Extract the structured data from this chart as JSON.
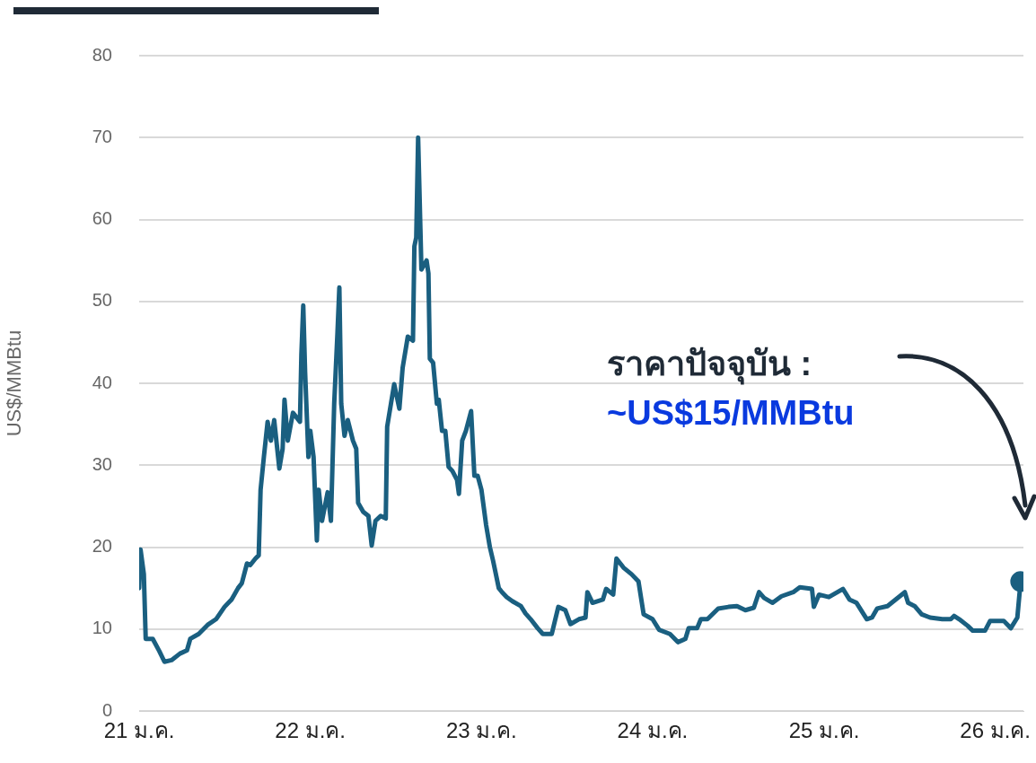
{
  "chart_data": {
    "type": "line",
    "ylabel": "US$/MMBtu",
    "annotations": [
      "ราคาปัจจุบัน :",
      "~US$15/MMBtu"
    ],
    "xlim": [
      "2021-01-01",
      "2026-03-02"
    ],
    "ylim": [
      0,
      80
    ],
    "yticks": [
      0,
      10,
      20,
      30,
      40,
      50,
      60,
      70,
      80
    ],
    "xticks": [
      {
        "value": "2021-01",
        "label": "21 ม.ค."
      },
      {
        "value": "2022-01",
        "label": "22 ม.ค."
      },
      {
        "value": "2023-01",
        "label": "23 ม.ค."
      },
      {
        "value": "2024-01",
        "label": "24 ม.ค."
      },
      {
        "value": "2025-01",
        "label": "25 ม.ค."
      },
      {
        "value": "2026-01",
        "label": "26 ม.ค."
      }
    ],
    "grid": "y",
    "legend": false,
    "series": [
      {
        "color": "#1a5f80",
        "x": [
          "2021-01-01",
          "2021-01-04",
          "2021-01-11",
          "2021-01-15",
          "2021-01-30",
          "2021-02-13",
          "2021-02-24",
          "2021-03-11",
          "2021-03-29",
          "2021-04-13",
          "2021-04-20",
          "2021-05-08",
          "2021-05-27",
          "2021-06-14",
          "2021-07-02",
          "2021-07-17",
          "2021-07-31",
          "2021-08-08",
          "2021-08-19",
          "2021-08-26",
          "2021-09-06",
          "2021-09-13",
          "2021-09-17",
          "2021-09-24",
          "2021-10-02",
          "2021-10-09",
          "2021-10-16",
          "2021-10-27",
          "2021-11-03",
          "2021-11-07",
          "2021-11-14",
          "2021-11-25",
          "2021-12-10",
          "2021-12-13",
          "2021-12-17",
          "2021-12-21",
          "2021-12-28",
          "2022-01-01",
          "2022-01-08",
          "2022-01-15",
          "2022-01-19",
          "2022-01-26",
          "2022-02-07",
          "2022-02-14",
          "2022-02-21",
          "2022-02-28",
          "2022-03-04",
          "2022-03-08",
          "2022-03-15",
          "2022-03-22",
          "2022-04-02",
          "2022-04-09",
          "2022-04-13",
          "2022-04-24",
          "2022-05-05",
          "2022-05-12",
          "2022-05-20",
          "2022-05-31",
          "2022-06-11",
          "2022-06-14",
          "2022-06-22",
          "2022-06-29",
          "2022-07-10",
          "2022-07-17",
          "2022-07-28",
          "2022-08-08",
          "2022-08-11",
          "2022-08-15",
          "2022-08-19",
          "2022-08-26",
          "2022-09-06",
          "2022-09-10",
          "2022-09-13",
          "2022-09-20",
          "2022-09-28",
          "2022-10-02",
          "2022-10-09",
          "2022-10-16",
          "2022-10-23",
          "2022-10-31",
          "2022-11-10",
          "2022-11-14",
          "2022-11-21",
          "2022-11-29",
          "2022-12-10",
          "2022-12-17",
          "2022-12-24",
          "2023-01-01",
          "2023-01-11",
          "2023-01-19",
          "2023-01-26",
          "2023-02-07",
          "2023-02-14",
          "2023-02-24",
          "2023-03-08",
          "2023-03-26",
          "2023-04-05",
          "2023-04-16",
          "2023-05-01",
          "2023-05-12",
          "2023-05-31",
          "2023-06-14",
          "2023-06-29",
          "2023-07-10",
          "2023-07-28",
          "2023-08-11",
          "2023-08-15",
          "2023-08-26",
          "2023-09-17",
          "2023-09-24",
          "2023-10-09",
          "2023-10-16",
          "2023-10-31",
          "2023-11-17",
          "2023-12-02",
          "2023-12-13",
          "2024-01-01",
          "2024-01-15",
          "2024-02-07",
          "2024-02-24",
          "2024-03-11",
          "2024-03-18",
          "2024-04-05",
          "2024-04-13",
          "2024-04-27",
          "2024-05-20",
          "2024-06-11",
          "2024-06-29",
          "2024-07-17",
          "2024-08-04",
          "2024-08-15",
          "2024-08-26",
          "2024-09-13",
          "2024-10-02",
          "2024-10-27",
          "2024-11-10",
          "2024-12-06",
          "2024-12-10",
          "2024-12-21",
          "2025-01-11",
          "2025-02-10",
          "2025-02-24",
          "2025-03-11",
          "2025-04-02",
          "2025-04-13",
          "2025-04-24",
          "2025-05-16",
          "2025-06-22",
          "2025-06-29",
          "2025-07-13",
          "2025-07-28",
          "2025-08-15",
          "2025-09-10",
          "2025-09-28",
          "2025-10-05",
          "2025-10-16",
          "2025-11-03",
          "2025-11-14",
          "2025-12-10",
          "2025-12-21",
          "2026-01-19",
          "2026-02-03",
          "2026-02-17",
          "2026-02-24"
        ],
        "values": [
          15,
          19.7,
          16.7,
          8.8,
          8.8,
          7.3,
          6,
          6.2,
          7,
          7.4,
          8.8,
          9.4,
          10.5,
          11.2,
          12.7,
          13.6,
          15,
          15.6,
          18,
          17.8,
          18.6,
          19,
          27,
          31,
          35.3,
          33,
          35.5,
          29.6,
          32,
          38,
          33,
          36.4,
          35.3,
          43.5,
          49.5,
          41.3,
          31,
          34.2,
          31,
          20.8,
          27,
          23.2,
          26.7,
          23.2,
          37.5,
          46.2,
          51.7,
          37.5,
          33.6,
          35.5,
          33,
          32,
          25.4,
          24.3,
          23.8,
          20.2,
          23.2,
          23.8,
          23.5,
          34.7,
          37.5,
          39.9,
          36.9,
          41.9,
          45.7,
          45.2,
          56.7,
          57.8,
          70,
          53.9,
          55,
          53.4,
          43,
          42.5,
          37.5,
          38,
          34.2,
          34.2,
          29.8,
          29.3,
          28.2,
          26.5,
          33,
          34.2,
          36.6,
          28.7,
          28.7,
          27,
          22.7,
          20,
          18.3,
          15,
          14.5,
          13.9,
          13.4,
          12.8,
          11.9,
          11.2,
          10.1,
          9.4,
          9.4,
          12.7,
          12.3,
          10.6,
          11.2,
          11.4,
          14.5,
          13.2,
          13.6,
          14.9,
          14.2,
          18.6,
          17.5,
          16.7,
          15.8,
          11.8,
          11.2,
          9.9,
          9.4,
          8.4,
          8.8,
          10.1,
          10.1,
          11.2,
          11.2,
          12.5,
          12.7,
          12.8,
          12.3,
          12.6,
          14.5,
          13.8,
          13.2,
          14,
          14.5,
          15.1,
          14.9,
          12.7,
          14.2,
          13.9,
          14.9,
          13.6,
          13.2,
          11.2,
          11.4,
          12.5,
          12.8,
          14.5,
          13.2,
          12.8,
          11.8,
          11.4,
          11.2,
          11.2,
          11.6,
          11.2,
          10.4,
          9.8,
          9.8,
          11,
          11,
          10.1,
          11.4,
          15.8
        ]
      }
    ]
  }
}
